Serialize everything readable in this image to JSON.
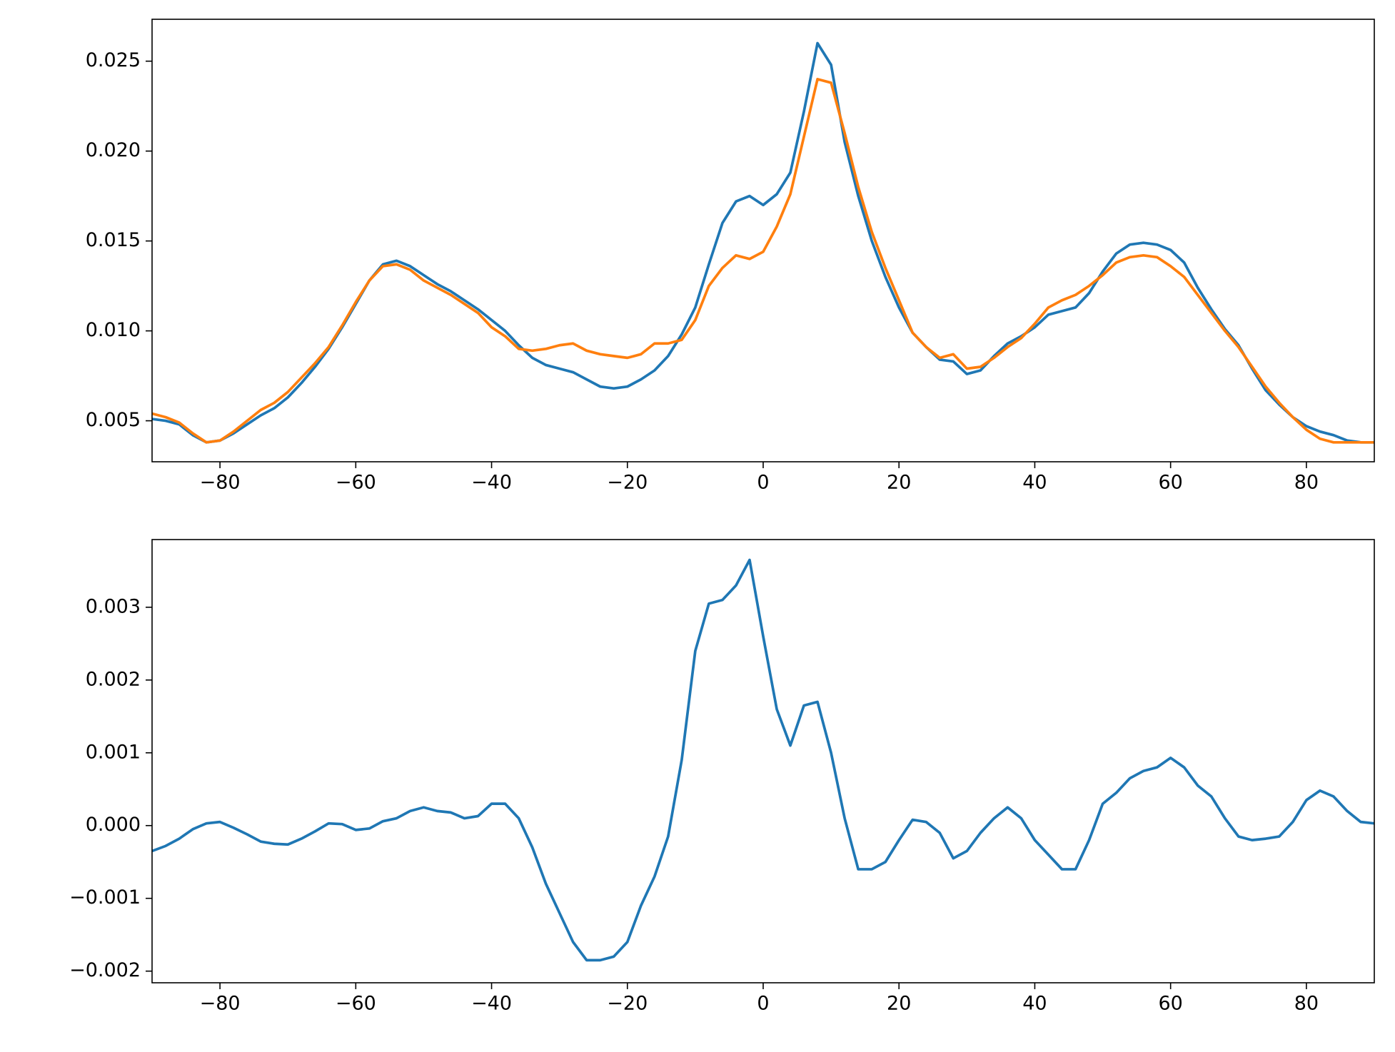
{
  "chart_data": [
    {
      "type": "line",
      "x": [
        -90,
        -88,
        -86,
        -84,
        -82,
        -80,
        -78,
        -76,
        -74,
        -72,
        -70,
        -68,
        -66,
        -64,
        -62,
        -60,
        -58,
        -56,
        -54,
        -52,
        -50,
        -48,
        -46,
        -44,
        -42,
        -40,
        -38,
        -36,
        -34,
        -32,
        -30,
        -28,
        -26,
        -24,
        -22,
        -20,
        -18,
        -16,
        -14,
        -12,
        -10,
        -8,
        -6,
        -4,
        -2,
        0,
        2,
        4,
        6,
        8,
        10,
        12,
        14,
        16,
        18,
        20,
        22,
        24,
        26,
        28,
        30,
        32,
        34,
        36,
        38,
        40,
        42,
        44,
        46,
        48,
        50,
        52,
        54,
        56,
        58,
        60,
        62,
        64,
        66,
        68,
        70,
        72,
        74,
        76,
        78,
        80,
        82,
        84,
        86,
        88,
        90
      ],
      "series": [
        {
          "color": "#1f77b4",
          "values": [
            0.0051,
            0.005,
            0.0048,
            0.0042,
            0.0038,
            0.0039,
            0.0043,
            0.0048,
            0.0053,
            0.0057,
            0.0063,
            0.0071,
            0.008,
            0.009,
            0.0102,
            0.0115,
            0.0128,
            0.0137,
            0.0139,
            0.0136,
            0.0131,
            0.0126,
            0.0122,
            0.0117,
            0.0112,
            0.0106,
            0.01,
            0.0092,
            0.0085,
            0.0081,
            0.0079,
            0.0077,
            0.0073,
            0.0069,
            0.0068,
            0.0069,
            0.0073,
            0.0078,
            0.0086,
            0.0098,
            0.0113,
            0.0137,
            0.016,
            0.0172,
            0.0175,
            0.017,
            0.0176,
            0.0188,
            0.0222,
            0.026,
            0.0248,
            0.0205,
            0.0175,
            0.015,
            0.013,
            0.0113,
            0.0099,
            0.0091,
            0.0084,
            0.0083,
            0.0076,
            0.0078,
            0.0086,
            0.0093,
            0.0097,
            0.0102,
            0.0109,
            0.0111,
            0.0113,
            0.0121,
            0.0133,
            0.0143,
            0.0148,
            0.0149,
            0.0148,
            0.0145,
            0.0138,
            0.0124,
            0.0112,
            0.0101,
            0.0092,
            0.0079,
            0.0067,
            0.0059,
            0.0052,
            0.0047,
            0.0044,
            0.0042,
            0.0039,
            0.0038,
            0.0038
          ]
        },
        {
          "color": "#ff7f0e",
          "values": [
            0.0054,
            0.0052,
            0.0049,
            0.0043,
            0.0038,
            0.0039,
            0.0044,
            0.005,
            0.0056,
            0.006,
            0.0066,
            0.0074,
            0.0082,
            0.0091,
            0.0103,
            0.0116,
            0.0128,
            0.0136,
            0.0137,
            0.0134,
            0.0128,
            0.0124,
            0.012,
            0.0115,
            0.011,
            0.0102,
            0.0097,
            0.009,
            0.0089,
            0.009,
            0.0092,
            0.0093,
            0.0089,
            0.0087,
            0.0086,
            0.0085,
            0.0087,
            0.0093,
            0.0093,
            0.0095,
            0.0106,
            0.0125,
            0.0135,
            0.0142,
            0.014,
            0.0144,
            0.0158,
            0.0176,
            0.0208,
            0.024,
            0.0238,
            0.021,
            0.018,
            0.0155,
            0.0135,
            0.0117,
            0.0099,
            0.0091,
            0.0085,
            0.0087,
            0.0079,
            0.008,
            0.0085,
            0.0091,
            0.0096,
            0.0104,
            0.0113,
            0.0117,
            0.012,
            0.0125,
            0.0131,
            0.0138,
            0.0141,
            0.0142,
            0.0141,
            0.0136,
            0.013,
            0.012,
            0.011,
            0.01,
            0.0091,
            0.008,
            0.0069,
            0.006,
            0.0052,
            0.0045,
            0.004,
            0.0038,
            0.0038,
            0.0038,
            0.0038
          ]
        }
      ],
      "xlim": [
        -90,
        90
      ],
      "xticks": [
        {
          "value": -80,
          "label": "−80"
        },
        {
          "value": -60,
          "label": "−60"
        },
        {
          "value": -40,
          "label": "−40"
        },
        {
          "value": -20,
          "label": "−20"
        },
        0,
        20,
        40,
        60,
        80
      ],
      "ylim": [
        0.00272,
        0.02733
      ],
      "yticks": [
        0.005,
        {
          "value": 0.01,
          "label": "0.010"
        },
        0.015,
        {
          "value": 0.02,
          "label": "0.020"
        },
        0.025
      ]
    },
    {
      "type": "line",
      "x": [
        -90,
        -88,
        -86,
        -84,
        -82,
        -80,
        -78,
        -76,
        -74,
        -72,
        -70,
        -68,
        -66,
        -64,
        -62,
        -60,
        -58,
        -56,
        -54,
        -52,
        -50,
        -48,
        -46,
        -44,
        -42,
        -40,
        -38,
        -36,
        -34,
        -32,
        -30,
        -28,
        -26,
        -24,
        -22,
        -20,
        -18,
        -16,
        -14,
        -12,
        -10,
        -8,
        -6,
        -4,
        -2,
        0,
        2,
        4,
        6,
        8,
        10,
        12,
        14,
        16,
        18,
        20,
        22,
        24,
        26,
        28,
        30,
        32,
        34,
        36,
        38,
        40,
        42,
        44,
        46,
        48,
        50,
        52,
        54,
        56,
        58,
        60,
        62,
        64,
        66,
        68,
        70,
        72,
        74,
        76,
        78,
        80,
        82,
        84,
        86,
        88,
        90
      ],
      "series": [
        {
          "color": "#1f77b4",
          "values": [
            -0.00035,
            -0.00028,
            -0.00018,
            -5e-05,
            3e-05,
            5e-05,
            -3e-05,
            -0.00012,
            -0.00022,
            -0.00025,
            -0.00026,
            -0.00018,
            -8e-05,
            3e-05,
            2e-05,
            -6e-05,
            -4e-05,
            6e-05,
            0.0001,
            0.0002,
            0.00025,
            0.0002,
            0.00018,
            0.0001,
            0.00013,
            0.0003,
            0.0003,
            0.0001,
            -0.0003,
            -0.0008,
            -0.0012,
            -0.0016,
            -0.00185,
            -0.00185,
            -0.0018,
            -0.0016,
            -0.0011,
            -0.0007,
            -0.00015,
            0.0009,
            0.0024,
            0.00305,
            0.0031,
            0.0033,
            0.00365,
            0.0026,
            0.0016,
            0.0011,
            0.00165,
            0.0017,
            0.001,
            0.0001,
            -0.0006,
            -0.0006,
            -0.0005,
            -0.0002,
            8e-05,
            5e-05,
            -0.0001,
            -0.00045,
            -0.00035,
            -0.0001,
            0.0001,
            0.00025,
            0.0001,
            -0.0002,
            -0.0004,
            -0.0006,
            -0.0006,
            -0.0002,
            0.0003,
            0.00045,
            0.00065,
            0.00075,
            0.0008,
            0.00093,
            0.0008,
            0.00055,
            0.0004,
            0.0001,
            -0.00015,
            -0.0002,
            -0.00018,
            -0.00015,
            5e-05,
            0.00035,
            0.00048,
            0.0004,
            0.0002,
            5e-05,
            3e-05
          ]
        }
      ],
      "xlim": [
        -90,
        90
      ],
      "xticks": [
        {
          "value": -80,
          "label": "−80"
        },
        {
          "value": -60,
          "label": "−60"
        },
        {
          "value": -40,
          "label": "−40"
        },
        {
          "value": -20,
          "label": "−20"
        },
        0,
        20,
        40,
        60,
        80
      ],
      "ylim": [
        -0.00216,
        0.00393
      ],
      "yticks": [
        {
          "value": -0.002,
          "label": "−0.002"
        },
        {
          "value": -0.001,
          "label": "−0.001"
        },
        {
          "value": 0,
          "label": "0.000"
        },
        0.001,
        0.002,
        0.003
      ]
    }
  ]
}
